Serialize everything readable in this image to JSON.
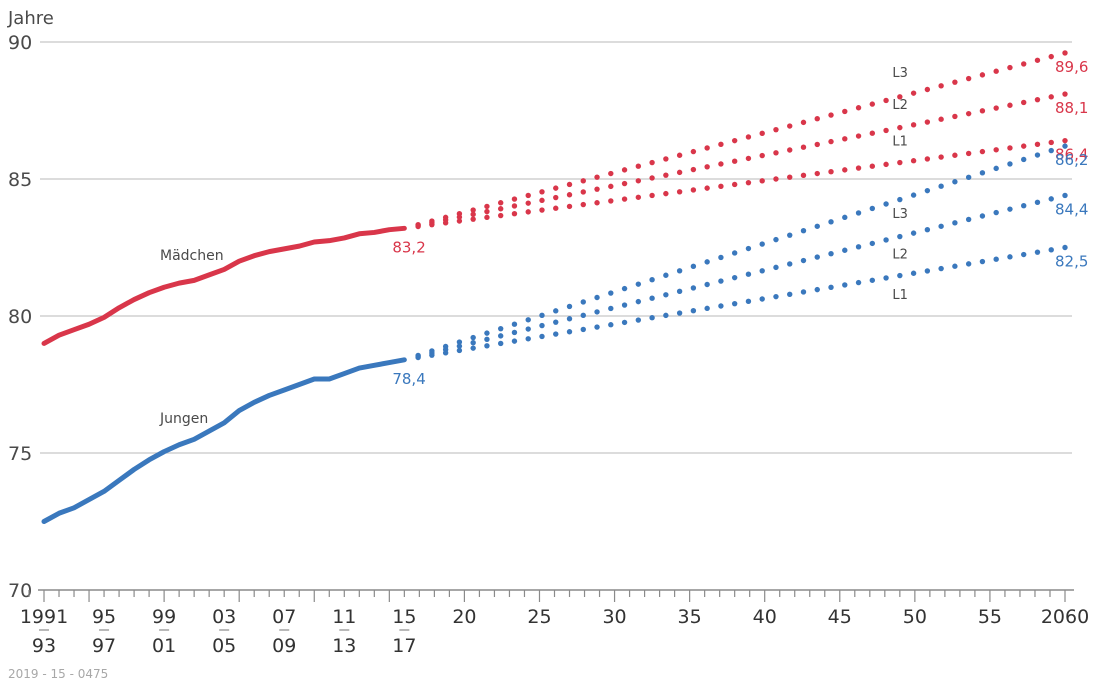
{
  "chart_data": {
    "type": "line",
    "unit_label": "Jahre",
    "ylim": [
      70,
      90
    ],
    "yticks": [
      70,
      75,
      80,
      85,
      90
    ],
    "grid": true,
    "colors": {
      "girls": "#d9364a",
      "boys": "#3a78bd"
    },
    "x_labels": [
      {
        "x": 1992,
        "top": "1991",
        "bottom": "93"
      },
      {
        "x": 1996,
        "top": "95",
        "bottom": "97"
      },
      {
        "x": 2000,
        "top": "99",
        "bottom": "01"
      },
      {
        "x": 2004,
        "top": "03",
        "bottom": "05"
      },
      {
        "x": 2008,
        "top": "07",
        "bottom": "09"
      },
      {
        "x": 2012,
        "top": "11",
        "bottom": "13"
      },
      {
        "x": 2016,
        "top": "15",
        "bottom": "17"
      },
      {
        "x": 2020,
        "top": "20",
        "bottom": ""
      },
      {
        "x": 2025,
        "top": "25",
        "bottom": ""
      },
      {
        "x": 2030,
        "top": "30",
        "bottom": ""
      },
      {
        "x": 2035,
        "top": "35",
        "bottom": ""
      },
      {
        "x": 2040,
        "top": "40",
        "bottom": ""
      },
      {
        "x": 2045,
        "top": "45",
        "bottom": ""
      },
      {
        "x": 2050,
        "top": "50",
        "bottom": ""
      },
      {
        "x": 2055,
        "top": "55",
        "bottom": ""
      },
      {
        "x": 2060,
        "top": "2060",
        "bottom": ""
      }
    ],
    "series": [
      {
        "name": "Mädchen",
        "color": "#d9364a",
        "x": [
          1992,
          1993,
          1994,
          1995,
          1996,
          1997,
          1998,
          1999,
          2000,
          2001,
          2002,
          2003,
          2004,
          2005,
          2006,
          2007,
          2008,
          2009,
          2010,
          2011,
          2012,
          2013,
          2014,
          2015,
          2016
        ],
        "y": [
          79.0,
          79.3,
          79.5,
          79.7,
          79.95,
          80.3,
          80.6,
          80.85,
          81.05,
          81.2,
          81.3,
          81.5,
          81.7,
          82.0,
          82.2,
          82.35,
          82.45,
          82.55,
          82.7,
          82.75,
          82.85,
          83.0,
          83.05,
          83.15,
          83.2
        ],
        "end_label": "83,2"
      },
      {
        "name": "Jungen",
        "color": "#3a78bd",
        "x": [
          1992,
          1993,
          1994,
          1995,
          1996,
          1997,
          1998,
          1999,
          2000,
          2001,
          2002,
          2003,
          2004,
          2005,
          2006,
          2007,
          2008,
          2009,
          2010,
          2011,
          2012,
          2013,
          2014,
          2015,
          2016
        ],
        "y": [
          72.5,
          72.8,
          73.0,
          73.3,
          73.6,
          74.0,
          74.4,
          74.75,
          75.05,
          75.3,
          75.5,
          75.8,
          76.1,
          76.55,
          76.85,
          77.1,
          77.3,
          77.5,
          77.7,
          77.7,
          77.9,
          78.1,
          78.2,
          78.3,
          78.4
        ],
        "end_label": "78,4"
      }
    ],
    "projections": [
      {
        "series": "Mädchen",
        "variant": "L3",
        "start": 83.2,
        "end": 89.6,
        "label": "89,6"
      },
      {
        "series": "Mädchen",
        "variant": "L2",
        "start": 83.2,
        "end": 88.1,
        "label": "88,1"
      },
      {
        "series": "Mädchen",
        "variant": "L1",
        "start": 83.2,
        "end": 86.4,
        "label": "86,4"
      },
      {
        "series": "Jungen",
        "variant": "L3",
        "start": 78.4,
        "end": 86.2,
        "label": "86,2"
      },
      {
        "series": "Jungen",
        "variant": "L2",
        "start": 78.4,
        "end": 84.4,
        "label": "84,4"
      },
      {
        "series": "Jungen",
        "variant": "L1",
        "start": 78.4,
        "end": 82.5,
        "label": "82,5"
      }
    ],
    "projection_range": [
      2016,
      2060
    ]
  },
  "footer_code": "2019 - 15 - 0475"
}
